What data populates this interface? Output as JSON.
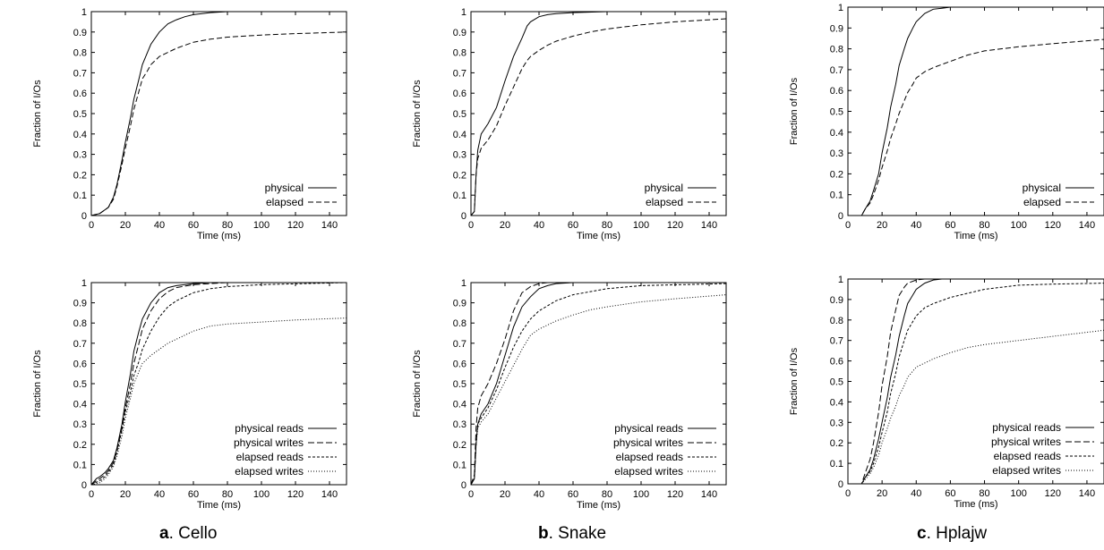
{
  "captions": [
    {
      "letter": "a",
      "name": ". Cello"
    },
    {
      "letter": "b",
      "name": ". Snake"
    },
    {
      "letter": "c",
      "name": ". Hplajw"
    }
  ],
  "styles": {
    "physical": "solid",
    "elapsed": "dashed",
    "physical reads": "solid",
    "physical writes": "longdash",
    "elapsed reads": "shortdash",
    "elapsed writes": "dotted"
  },
  "chart_data": [
    {
      "type": "line",
      "id": "cello-top",
      "xlabel": "Time (ms)",
      "ylabel": "Fraction of I/Os",
      "xlim": [
        0,
        150
      ],
      "ylim": [
        0,
        1
      ],
      "xticks": [
        "0",
        "20",
        "40",
        "60",
        "80",
        "100",
        "120",
        "140"
      ],
      "yticks": [
        "0",
        "0.1",
        "0.2",
        "0.3",
        "0.4",
        "0.5",
        "0.6",
        "0.7",
        "0.8",
        "0.9",
        "1"
      ],
      "grid": false,
      "legend": "bottom-right",
      "series": [
        {
          "name": "physical",
          "x": [
            0,
            5,
            10,
            13,
            15,
            18,
            20,
            23,
            25,
            28,
            30,
            33,
            35,
            40,
            45,
            50,
            55,
            60,
            70,
            80,
            100,
            150
          ],
          "y": [
            0,
            0.01,
            0.04,
            0.09,
            0.15,
            0.27,
            0.36,
            0.48,
            0.57,
            0.67,
            0.74,
            0.8,
            0.84,
            0.9,
            0.94,
            0.96,
            0.975,
            0.985,
            0.995,
            1,
            1,
            1
          ]
        },
        {
          "name": "elapsed",
          "x": [
            0,
            5,
            10,
            13,
            15,
            18,
            20,
            23,
            25,
            28,
            30,
            33,
            35,
            40,
            45,
            50,
            60,
            70,
            80,
            100,
            120,
            150
          ],
          "y": [
            0,
            0.01,
            0.04,
            0.08,
            0.14,
            0.25,
            0.33,
            0.44,
            0.52,
            0.61,
            0.67,
            0.71,
            0.74,
            0.78,
            0.8,
            0.82,
            0.85,
            0.865,
            0.875,
            0.885,
            0.892,
            0.9
          ]
        }
      ]
    },
    {
      "type": "line",
      "id": "snake-top",
      "xlabel": "Time (ms)",
      "ylabel": "Fraction of I/Os",
      "xlim": [
        0,
        150
      ],
      "ylim": [
        0,
        1
      ],
      "xticks": [
        "0",
        "20",
        "40",
        "60",
        "80",
        "100",
        "120",
        "140"
      ],
      "yticks": [
        "0",
        "0.1",
        "0.2",
        "0.3",
        "0.4",
        "0.5",
        "0.6",
        "0.7",
        "0.8",
        "0.9",
        "1"
      ],
      "grid": false,
      "legend": "bottom-right",
      "series": [
        {
          "name": "physical",
          "x": [
            0,
            2,
            3,
            4,
            6,
            10,
            15,
            20,
            25,
            30,
            33,
            35,
            40,
            45,
            50,
            60,
            80,
            100,
            150
          ],
          "y": [
            0,
            0.02,
            0.2,
            0.32,
            0.4,
            0.45,
            0.53,
            0.66,
            0.78,
            0.87,
            0.93,
            0.95,
            0.975,
            0.985,
            0.99,
            0.995,
            1,
            1,
            1
          ]
        },
        {
          "name": "elapsed",
          "x": [
            0,
            2,
            3,
            4,
            6,
            10,
            15,
            20,
            25,
            30,
            33,
            35,
            40,
            45,
            50,
            60,
            70,
            80,
            100,
            120,
            150
          ],
          "y": [
            0,
            0.02,
            0.2,
            0.28,
            0.33,
            0.37,
            0.44,
            0.54,
            0.63,
            0.72,
            0.76,
            0.78,
            0.81,
            0.835,
            0.855,
            0.88,
            0.9,
            0.915,
            0.935,
            0.95,
            0.965
          ]
        }
      ]
    },
    {
      "type": "line",
      "id": "hplajw-top",
      "xlabel": "Time (ms)",
      "ylabel": "Fraction of I/Os",
      "xlim": [
        0,
        150
      ],
      "ylim": [
        0,
        1
      ],
      "xticks": [
        "0",
        "20",
        "40",
        "60",
        "80",
        "100",
        "120",
        "140"
      ],
      "yticks": [
        "0",
        "0.1",
        "0.2",
        "0.3",
        "0.4",
        "0.5",
        "0.6",
        "0.7",
        "0.8",
        "0.9",
        "1"
      ],
      "grid": false,
      "legend": "bottom-right",
      "series": [
        {
          "name": "physical",
          "x": [
            0,
            8,
            10,
            13,
            15,
            18,
            20,
            23,
            25,
            28,
            30,
            33,
            35,
            38,
            40,
            45,
            50,
            55,
            60,
            70,
            80,
            150
          ],
          "y": [
            0,
            0,
            0.03,
            0.07,
            0.12,
            0.2,
            0.3,
            0.42,
            0.52,
            0.63,
            0.72,
            0.8,
            0.85,
            0.9,
            0.93,
            0.97,
            0.99,
            0.995,
            1,
            1,
            1,
            1
          ]
        },
        {
          "name": "elapsed",
          "x": [
            0,
            8,
            10,
            13,
            15,
            18,
            20,
            23,
            25,
            28,
            30,
            33,
            35,
            38,
            40,
            45,
            50,
            60,
            70,
            80,
            100,
            120,
            150
          ],
          "y": [
            0,
            0,
            0.03,
            0.06,
            0.1,
            0.17,
            0.23,
            0.31,
            0.37,
            0.44,
            0.49,
            0.55,
            0.59,
            0.63,
            0.66,
            0.69,
            0.71,
            0.74,
            0.77,
            0.79,
            0.81,
            0.825,
            0.845
          ]
        }
      ]
    },
    {
      "type": "line",
      "id": "cello-bottom",
      "xlabel": "Time (ms)",
      "ylabel": "Fraction of I/Os",
      "xlim": [
        0,
        150
      ],
      "ylim": [
        0,
        1
      ],
      "xticks": [
        "0",
        "20",
        "40",
        "60",
        "80",
        "100",
        "120",
        "140"
      ],
      "yticks": [
        "0",
        "0.1",
        "0.2",
        "0.3",
        "0.4",
        "0.5",
        "0.6",
        "0.7",
        "0.8",
        "0.9",
        "1"
      ],
      "grid": false,
      "legend": "bottom-right",
      "series": [
        {
          "name": "physical reads",
          "x": [
            0,
            3,
            5,
            8,
            10,
            13,
            15,
            18,
            20,
            23,
            25,
            28,
            30,
            35,
            40,
            45,
            50,
            60,
            70,
            80,
            150
          ],
          "y": [
            0,
            0.03,
            0.04,
            0.06,
            0.08,
            0.12,
            0.18,
            0.3,
            0.41,
            0.55,
            0.66,
            0.76,
            0.82,
            0.9,
            0.95,
            0.975,
            0.985,
            0.995,
            1,
            1,
            1
          ]
        },
        {
          "name": "physical writes",
          "x": [
            0,
            3,
            5,
            8,
            10,
            13,
            15,
            18,
            20,
            23,
            25,
            28,
            30,
            35,
            40,
            45,
            50,
            60,
            70,
            80,
            150
          ],
          "y": [
            0,
            0.02,
            0.03,
            0.05,
            0.07,
            0.11,
            0.17,
            0.28,
            0.38,
            0.5,
            0.6,
            0.7,
            0.77,
            0.86,
            0.92,
            0.955,
            0.975,
            0.99,
            0.995,
            1,
            1
          ]
        },
        {
          "name": "elapsed reads",
          "x": [
            0,
            5,
            8,
            10,
            13,
            15,
            18,
            20,
            23,
            25,
            28,
            30,
            35,
            40,
            45,
            50,
            60,
            70,
            80,
            100,
            150
          ],
          "y": [
            0,
            0.02,
            0.04,
            0.06,
            0.1,
            0.16,
            0.27,
            0.36,
            0.46,
            0.54,
            0.61,
            0.67,
            0.76,
            0.83,
            0.88,
            0.91,
            0.95,
            0.97,
            0.98,
            0.99,
            1
          ]
        },
        {
          "name": "elapsed writes",
          "x": [
            0,
            5,
            8,
            10,
            13,
            15,
            18,
            20,
            23,
            25,
            28,
            30,
            35,
            40,
            45,
            50,
            60,
            70,
            80,
            100,
            120,
            150
          ],
          "y": [
            0,
            0.01,
            0.03,
            0.05,
            0.09,
            0.14,
            0.24,
            0.33,
            0.43,
            0.5,
            0.56,
            0.6,
            0.64,
            0.67,
            0.7,
            0.72,
            0.76,
            0.785,
            0.795,
            0.805,
            0.815,
            0.825
          ]
        }
      ]
    },
    {
      "type": "line",
      "id": "snake-bottom",
      "xlabel": "Time (ms)",
      "ylabel": "Fraction of I/Os",
      "xlim": [
        0,
        150
      ],
      "ylim": [
        0,
        1
      ],
      "xticks": [
        "0",
        "20",
        "40",
        "60",
        "80",
        "100",
        "120",
        "140"
      ],
      "yticks": [
        "0",
        "0.1",
        "0.2",
        "0.3",
        "0.4",
        "0.5",
        "0.6",
        "0.7",
        "0.8",
        "0.9",
        "1"
      ],
      "grid": false,
      "legend": "bottom-right",
      "series": [
        {
          "name": "physical reads",
          "x": [
            0,
            2,
            3,
            4,
            6,
            10,
            15,
            20,
            25,
            30,
            35,
            40,
            45,
            50,
            60,
            80,
            150
          ],
          "y": [
            0,
            0.03,
            0.2,
            0.3,
            0.35,
            0.4,
            0.5,
            0.64,
            0.78,
            0.88,
            0.93,
            0.97,
            0.985,
            0.995,
            1,
            1,
            1
          ]
        },
        {
          "name": "physical writes",
          "x": [
            0,
            2,
            3,
            4,
            6,
            10,
            15,
            20,
            25,
            30,
            35,
            40,
            45,
            50,
            60,
            150
          ],
          "y": [
            0,
            0.05,
            0.28,
            0.38,
            0.44,
            0.5,
            0.6,
            0.72,
            0.86,
            0.95,
            0.98,
            0.995,
            1,
            1,
            1,
            1
          ]
        },
        {
          "name": "elapsed reads",
          "x": [
            0,
            2,
            3,
            4,
            6,
            10,
            15,
            20,
            25,
            30,
            35,
            40,
            50,
            60,
            80,
            100,
            150
          ],
          "y": [
            0,
            0.03,
            0.2,
            0.3,
            0.33,
            0.38,
            0.47,
            0.58,
            0.68,
            0.76,
            0.82,
            0.86,
            0.91,
            0.94,
            0.97,
            0.985,
            0.995
          ]
        },
        {
          "name": "elapsed writes",
          "x": [
            0,
            2,
            3,
            4,
            6,
            10,
            15,
            20,
            25,
            30,
            35,
            40,
            50,
            60,
            70,
            80,
            100,
            120,
            150
          ],
          "y": [
            0,
            0.03,
            0.2,
            0.28,
            0.31,
            0.35,
            0.43,
            0.51,
            0.59,
            0.67,
            0.74,
            0.77,
            0.81,
            0.84,
            0.865,
            0.88,
            0.905,
            0.92,
            0.94
          ]
        }
      ]
    },
    {
      "type": "line",
      "id": "hplajw-bottom",
      "xlabel": "Time (ms)",
      "ylabel": "Fraction of I/Os",
      "xlim": [
        0,
        150
      ],
      "ylim": [
        0,
        1
      ],
      "xticks": [
        "0",
        "20",
        "40",
        "60",
        "80",
        "100",
        "120",
        "140"
      ],
      "yticks": [
        "0",
        "0.1",
        "0.2",
        "0.3",
        "0.4",
        "0.5",
        "0.6",
        "0.7",
        "0.8",
        "0.9",
        "1"
      ],
      "grid": false,
      "legend": "bottom-right",
      "series": [
        {
          "name": "physical reads",
          "x": [
            0,
            8,
            10,
            13,
            15,
            18,
            20,
            23,
            25,
            28,
            30,
            33,
            35,
            40,
            45,
            50,
            55,
            60,
            80,
            150
          ],
          "y": [
            0,
            0,
            0.03,
            0.07,
            0.12,
            0.22,
            0.3,
            0.42,
            0.52,
            0.63,
            0.72,
            0.82,
            0.88,
            0.95,
            0.98,
            0.995,
            1,
            1,
            1,
            1
          ]
        },
        {
          "name": "physical writes",
          "x": [
            0,
            8,
            10,
            13,
            15,
            18,
            20,
            23,
            25,
            28,
            30,
            33,
            35,
            40,
            45,
            50,
            60,
            150
          ],
          "y": [
            0,
            0,
            0.05,
            0.12,
            0.2,
            0.35,
            0.48,
            0.62,
            0.74,
            0.85,
            0.92,
            0.96,
            0.98,
            0.995,
            1,
            1,
            1,
            1
          ]
        },
        {
          "name": "elapsed reads",
          "x": [
            0,
            8,
            10,
            13,
            15,
            18,
            20,
            23,
            25,
            28,
            30,
            33,
            35,
            40,
            45,
            50,
            60,
            70,
            80,
            100,
            120,
            150
          ],
          "y": [
            0,
            0,
            0.03,
            0.06,
            0.1,
            0.18,
            0.25,
            0.35,
            0.44,
            0.54,
            0.62,
            0.7,
            0.75,
            0.82,
            0.86,
            0.88,
            0.91,
            0.93,
            0.95,
            0.97,
            0.975,
            0.98
          ]
        },
        {
          "name": "elapsed writes",
          "x": [
            0,
            8,
            10,
            13,
            15,
            18,
            20,
            23,
            25,
            28,
            30,
            33,
            35,
            40,
            45,
            50,
            60,
            70,
            80,
            100,
            120,
            150
          ],
          "y": [
            0,
            0,
            0.02,
            0.05,
            0.08,
            0.14,
            0.2,
            0.27,
            0.32,
            0.38,
            0.43,
            0.48,
            0.52,
            0.57,
            0.59,
            0.61,
            0.64,
            0.665,
            0.68,
            0.7,
            0.72,
            0.75
          ]
        }
      ]
    }
  ]
}
